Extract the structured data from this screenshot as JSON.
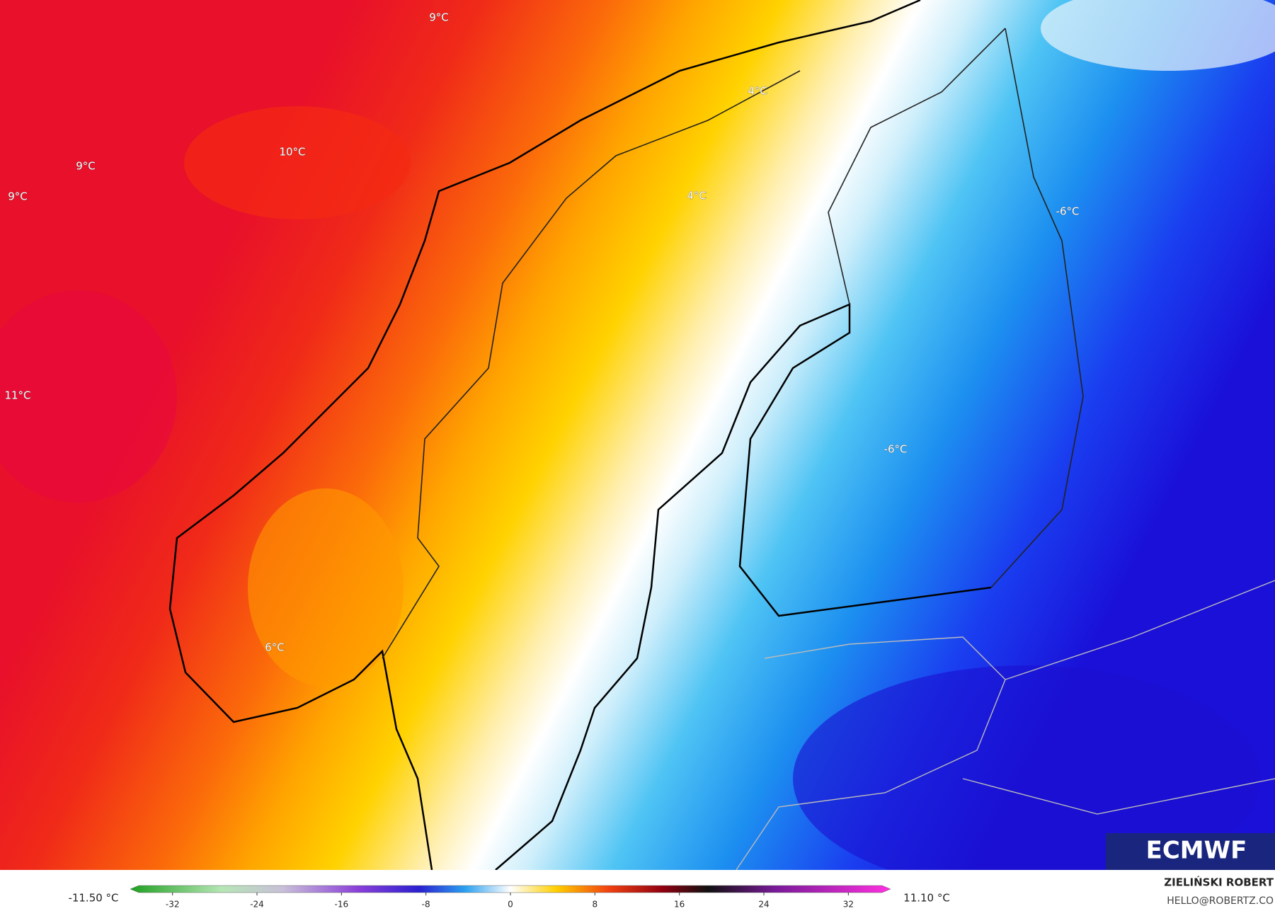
{
  "map": {
    "labels": [
      "9°C",
      "10°C",
      "9°C",
      "9°C",
      "11°C",
      "4°C",
      "4°C",
      "-6°C",
      "-6°C",
      "6°C"
    ],
    "logo": "ECMWF"
  },
  "colorbar": {
    "min_label": "-11.50 °C",
    "max_label": "11.10 °C",
    "lim": [
      -36,
      36
    ],
    "ticks": [
      -32,
      -24,
      -16,
      -8,
      0,
      8,
      16,
      24,
      32
    ]
  },
  "credit": {
    "author": "ZIELIŃSKI ROBERT",
    "contact": "HELLO@ROBERTZ.CO"
  }
}
